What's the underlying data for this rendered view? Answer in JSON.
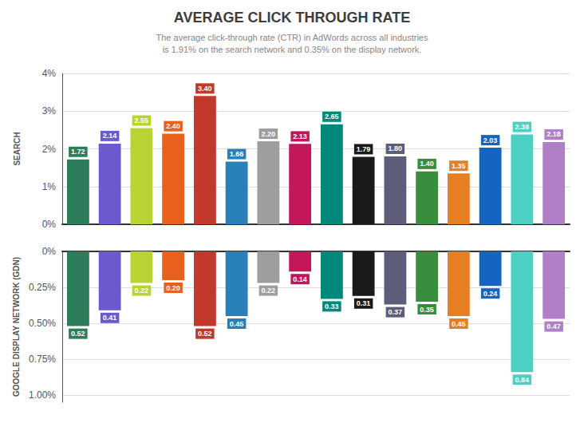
{
  "chart_data": [
    {
      "type": "bar",
      "title": "AVERAGE CLICK THROUGH RATE",
      "subtitle": "The average click-through rate (CTR) in AdWords across all industries\nis 1.91% on the search network and 0.35% on the display network.",
      "ylabel": "SEARCH",
      "categories": [
        null,
        null,
        null,
        null,
        null,
        null,
        null,
        null,
        null,
        null,
        null,
        null,
        null,
        null,
        null,
        null
      ],
      "values": [
        1.72,
        2.14,
        2.55,
        2.4,
        3.4,
        1.66,
        2.2,
        2.13,
        2.65,
        1.79,
        1.8,
        1.4,
        1.35,
        2.03,
        2.38,
        2.18
      ],
      "value_labels": [
        "1.72",
        "2.14",
        "2.55",
        "2.40",
        "3.40",
        "1.66",
        "2.20",
        "2.13",
        "2.65",
        "1.79",
        "1.80",
        "1.40",
        "1.35",
        "2.03",
        "2.38",
        "2.18"
      ],
      "colors": [
        "#2e7d5a",
        "#6a5acd",
        "#b8d432",
        "#e8601c",
        "#c0392b",
        "#2980b9",
        "#9e9e9e",
        "#c2185b",
        "#00897b",
        "#1a1a1a",
        "#5d5d7a",
        "#388e3c",
        "#e67e22",
        "#1565c0",
        "#4dd0c4",
        "#b07fc8"
      ],
      "ylim": [
        0,
        4.0
      ],
      "yticks": [
        {
          "value": 0,
          "label": "0%"
        },
        {
          "value": 1,
          "label": "1%"
        },
        {
          "value": 2,
          "label": "2%"
        },
        {
          "value": 3,
          "label": "3%"
        },
        {
          "value": 4,
          "label": "4%"
        }
      ],
      "grid": true,
      "data_labels": true,
      "tick_labels": "y"
    },
    {
      "type": "bar",
      "ylabel": "GOOGLE DISPLAY NETWORK (GDN)",
      "categories": [
        null,
        null,
        null,
        null,
        null,
        null,
        null,
        null,
        null,
        null,
        null,
        null,
        null,
        null,
        null,
        null
      ],
      "values": [
        0.52,
        0.41,
        0.22,
        0.2,
        0.52,
        0.45,
        0.22,
        0.14,
        0.33,
        0.31,
        0.37,
        0.35,
        0.45,
        0.24,
        0.84,
        0.47
      ],
      "value_labels": [
        "0.52",
        "0.41",
        "0.22",
        "0.20",
        "0.52",
        "0.45",
        "0.22",
        "0.14",
        "0.33",
        "0.31",
        "0.37",
        "0.35",
        "0.45",
        "0.24",
        "0.84",
        "0.47"
      ],
      "colors": [
        "#2e7d5a",
        "#6a5acd",
        "#b8d432",
        "#e8601c",
        "#c0392b",
        "#2980b9",
        "#9e9e9e",
        "#c2185b",
        "#00897b",
        "#1a1a1a",
        "#5d5d7a",
        "#388e3c",
        "#e67e22",
        "#1565c0",
        "#4dd0c4",
        "#b07fc8"
      ],
      "ylim": [
        1.05,
        0
      ],
      "yticks": [
        {
          "value": 0,
          "label": "0%"
        },
        {
          "value": 0.25,
          "label": "0.25%"
        },
        {
          "value": 0.5,
          "label": "0.50%"
        },
        {
          "value": 0.75,
          "label": "0.75%"
        },
        {
          "value": 1,
          "label": "1.00%"
        }
      ],
      "grid": true,
      "data_labels": true,
      "tick_labels": "y"
    }
  ]
}
